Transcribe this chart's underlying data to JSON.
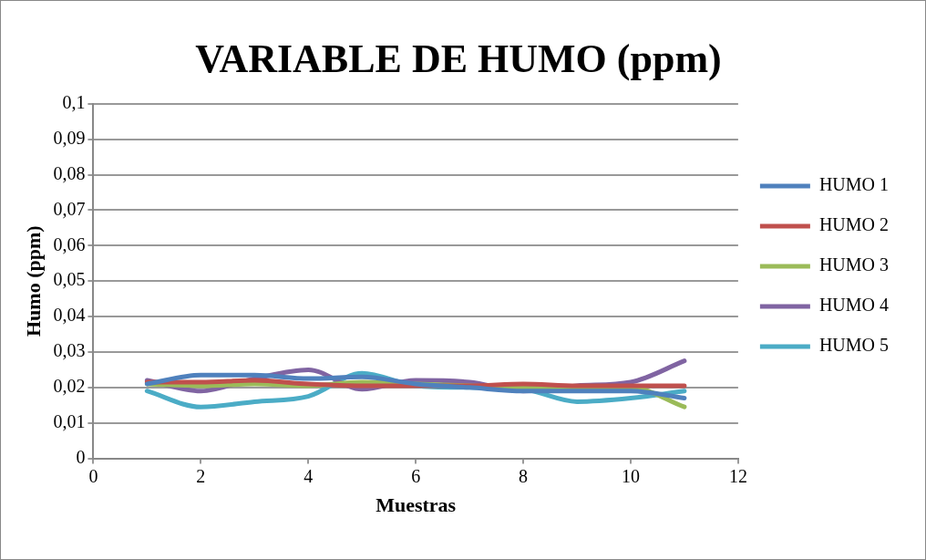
{
  "chart_data": {
    "type": "line",
    "title": "VARIABLE DE HUMO (ppm)",
    "xlabel": "Muestras",
    "ylabel": "Humo (ppm)",
    "x": [
      1,
      2,
      3,
      4,
      5,
      6,
      7,
      8,
      9,
      10,
      11
    ],
    "series": [
      {
        "name": "HUMO 1",
        "color": "#4f81bd",
        "values": [
          0.021,
          0.0235,
          0.0235,
          0.0225,
          0.023,
          0.021,
          0.02,
          0.019,
          0.019,
          0.019,
          0.017
        ]
      },
      {
        "name": "HUMO 2",
        "color": "#c0504d",
        "values": [
          0.0215,
          0.0215,
          0.022,
          0.021,
          0.0205,
          0.0205,
          0.0205,
          0.021,
          0.0205,
          0.0205,
          0.0205
        ]
      },
      {
        "name": "HUMO 3",
        "color": "#9bbb59",
        "values": [
          0.021,
          0.0205,
          0.021,
          0.0205,
          0.0215,
          0.021,
          0.0205,
          0.02,
          0.02,
          0.02,
          0.0145
        ]
      },
      {
        "name": "HUMO 4",
        "color": "#8064a2",
        "values": [
          0.022,
          0.019,
          0.0225,
          0.025,
          0.0195,
          0.022,
          0.0215,
          0.019,
          0.0205,
          0.0215,
          0.0275
        ]
      },
      {
        "name": "HUMO 5",
        "color": "#4bacc6",
        "values": [
          0.019,
          0.0145,
          0.016,
          0.0175,
          0.024,
          0.0205,
          0.02,
          0.0195,
          0.016,
          0.017,
          0.019
        ]
      }
    ],
    "xlim": [
      0,
      12
    ],
    "xticks": [
      0,
      2,
      4,
      6,
      8,
      10,
      12
    ],
    "ylim": [
      0,
      0.1
    ],
    "yticks": [
      {
        "value": 0,
        "label": "0"
      },
      {
        "value": 0.01,
        "label": "0,01"
      },
      {
        "value": 0.02,
        "label": "0,02"
      },
      {
        "value": 0.03,
        "label": "0,03"
      },
      {
        "value": 0.04,
        "label": "0,04"
      },
      {
        "value": 0.05,
        "label": "0,05"
      },
      {
        "value": 0.06,
        "label": "0,06"
      },
      {
        "value": 0.07,
        "label": "0,07"
      },
      {
        "value": 0.08,
        "label": "0,08"
      },
      {
        "value": 0.09,
        "label": "0,09"
      },
      {
        "value": 0.1,
        "label": "0,1"
      }
    ],
    "grid": "y",
    "legend": "right",
    "marker": "none",
    "line_style": "solid"
  }
}
